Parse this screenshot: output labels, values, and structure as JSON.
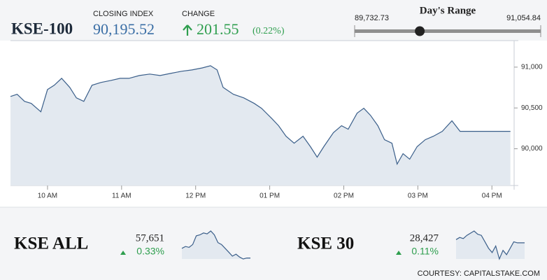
{
  "header": {
    "symbol": "KSE-100",
    "closing_label": "CLOSING INDEX",
    "closing": {
      "value": 90195.52,
      "label": "90,195.52"
    },
    "change_label": "CHANGE",
    "change": 201.55,
    "change_pct": {
      "value": 0.22,
      "label": "(0.22%)"
    },
    "range_label": "Day's Range",
    "range_low": {
      "value": 89732.73,
      "label": "89,732.73"
    },
    "range_high": {
      "value": 91054.84,
      "label": "91,054.84"
    }
  },
  "tickers": [
    {
      "name": "KSE ALL",
      "price": {
        "value": 57651,
        "label": "57,651"
      },
      "change": {
        "value": 0.33,
        "label": "0.33%"
      }
    },
    {
      "name": "KSE 30",
      "price": {
        "value": 28427,
        "label": "28,427"
      },
      "change": {
        "value": 0.11,
        "label": "0.11%"
      }
    }
  ],
  "footer": "COURTESY: CAPITALSTAKE.COM",
  "chart_data": [
    {
      "type": "area",
      "color": "#3b5f8a",
      "fill": "#e3e9f0",
      "x": [
        9.5,
        9.59,
        9.69,
        9.78,
        9.91,
        10.0,
        10.09,
        10.19,
        10.3,
        10.39,
        10.49,
        10.6,
        10.72,
        10.86,
        10.98,
        11.1,
        11.24,
        11.38,
        11.52,
        11.66,
        11.81,
        11.95,
        12.09,
        12.2,
        12.29,
        12.37,
        12.51,
        12.65,
        12.79,
        12.89,
        13.03,
        13.12,
        13.22,
        13.33,
        13.45,
        13.55,
        13.64,
        13.73,
        13.86,
        13.97,
        14.06,
        14.18,
        14.27,
        14.36,
        14.46,
        14.55,
        14.65,
        14.72,
        14.8,
        14.89,
        14.99,
        15.1,
        15.21,
        15.33,
        15.46,
        15.57,
        16.25
      ],
      "values": [
        90641,
        90667,
        90581,
        90556,
        90453,
        90726,
        90778,
        90863,
        90752,
        90624,
        90581,
        90778,
        90812,
        90838,
        90863,
        90863,
        90897,
        90915,
        90897,
        90923,
        90949,
        90966,
        90991,
        91017,
        90966,
        90752,
        90667,
        90624,
        90556,
        90496,
        90368,
        90282,
        90154,
        90068,
        90154,
        90026,
        89897,
        90026,
        90197,
        90282,
        90239,
        90436,
        90496,
        90410,
        90282,
        90111,
        90068,
        89812,
        89940,
        89872,
        90026,
        90111,
        90154,
        90214,
        90342,
        90214,
        90214
      ],
      "xlim": [
        9.5,
        16.3
      ],
      "ylim": [
        89550,
        91325
      ],
      "xticks": [
        {
          "value": 10,
          "label": "10 AM"
        },
        {
          "value": 11,
          "label": "11 AM"
        },
        {
          "value": 12,
          "label": "12 PM"
        },
        {
          "value": 13,
          "label": "01 PM"
        },
        {
          "value": 14,
          "label": "02 PM"
        },
        {
          "value": 15,
          "label": "03 PM"
        },
        {
          "value": 16,
          "label": "04 PM"
        }
      ],
      "yticks": [
        {
          "value": 90000,
          "label": "90,000"
        },
        {
          "value": 90500,
          "label": "90,500"
        },
        {
          "value": 91000,
          "label": "91,000"
        }
      ]
    },
    {
      "type": "area",
      "color": "#3b5f8a",
      "fill": "#e3e9f0",
      "values": [
        57560,
        57580,
        57570,
        57600,
        57690,
        57700,
        57720,
        57710,
        57740,
        57700,
        57620,
        57600,
        57560,
        57520,
        57480,
        57500,
        57470,
        57450,
        57460,
        57460
      ]
    },
    {
      "type": "area",
      "color": "#3b5f8a",
      "fill": "#e3e9f0",
      "values": [
        28390,
        28400,
        28395,
        28410,
        28420,
        28430,
        28415,
        28410,
        28380,
        28350,
        28330,
        28360,
        28300,
        28340,
        28320,
        28350,
        28380,
        28375,
        28375,
        28375
      ]
    }
  ]
}
